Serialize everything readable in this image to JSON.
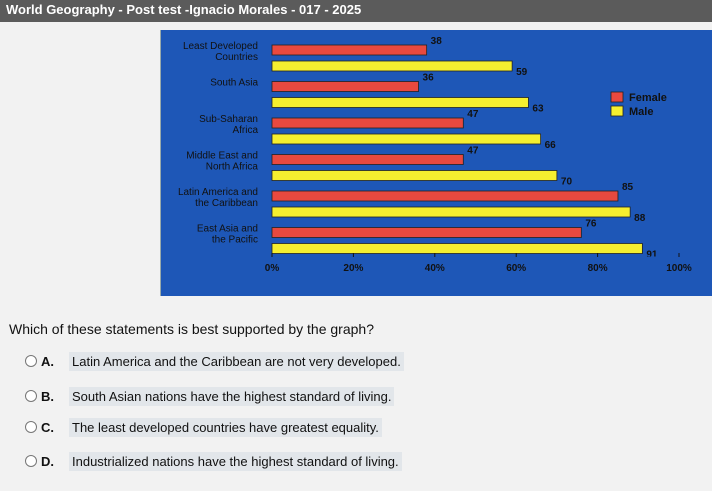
{
  "header": {
    "title": "World Geography - Post test -Ignacio Morales - 017 - 2025"
  },
  "chart_data": {
    "type": "bar",
    "orientation": "horizontal",
    "categories": [
      [
        "Least Developed",
        "Countries"
      ],
      [
        "South Asia"
      ],
      [
        "Sub-Saharan",
        "Africa"
      ],
      [
        "Middle East and",
        "North Africa"
      ],
      [
        "Latin America and",
        "the Caribbean"
      ],
      [
        "East Asia and",
        "the Pacific"
      ]
    ],
    "series": [
      {
        "name": "Female",
        "color": "#e8493f",
        "values": [
          38,
          36,
          47,
          47,
          85,
          76
        ]
      },
      {
        "name": "Male",
        "color": "#f5ef2f",
        "values": [
          59,
          63,
          66,
          70,
          88,
          91
        ]
      }
    ],
    "xlim": [
      0,
      100
    ],
    "tick_labels": [
      "0%",
      "20%",
      "40%",
      "60%",
      "80%",
      "100%"
    ],
    "legend_position": "right",
    "grid": false,
    "background": "#1e57b7"
  },
  "question": {
    "text": "Which of these statements is best supported by the graph?"
  },
  "options": [
    {
      "letter": "A.",
      "text": "Latin America and the Caribbean are not very developed."
    },
    {
      "letter": "B.",
      "text": "South Asian nations have the highest standard of living."
    },
    {
      "letter": "C.",
      "text": "The least developed countries have greatest equality."
    },
    {
      "letter": "D.",
      "text": "Industrialized nations have the highest standard of living."
    }
  ]
}
